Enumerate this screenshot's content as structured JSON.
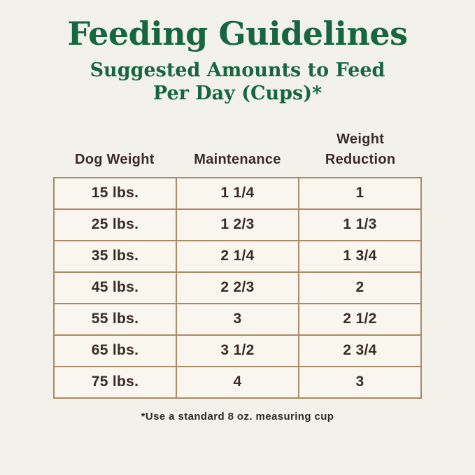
{
  "page": {
    "title": "Feeding Guidelines",
    "subtitle_line1": "Suggested Amounts to Feed",
    "subtitle_line2": "Per Day (Cups)*",
    "footnote": "*Use a standard 8 oz. measuring cup"
  },
  "colors": {
    "background": "#f2f1ea",
    "title_green": "#17663f",
    "table_border": "#ac8a62",
    "cell_background": "#f8f6ef",
    "text_dark": "#3b2b27"
  },
  "table": {
    "columns": [
      "Dog Weight",
      "Maintenance",
      "Weight Reduction"
    ],
    "rows": [
      [
        "15 lbs.",
        "1 1/4",
        "1"
      ],
      [
        "25 lbs.",
        "1 2/3",
        "1 1/3"
      ],
      [
        "35 lbs.",
        "2 1/4",
        "1 3/4"
      ],
      [
        "45 lbs.",
        "2 2/3",
        "2"
      ],
      [
        "55 lbs.",
        "3",
        "2 1/2"
      ],
      [
        "65 lbs.",
        "3 1/2",
        "2 3/4"
      ],
      [
        "75 lbs.",
        "4",
        "3"
      ]
    ]
  }
}
